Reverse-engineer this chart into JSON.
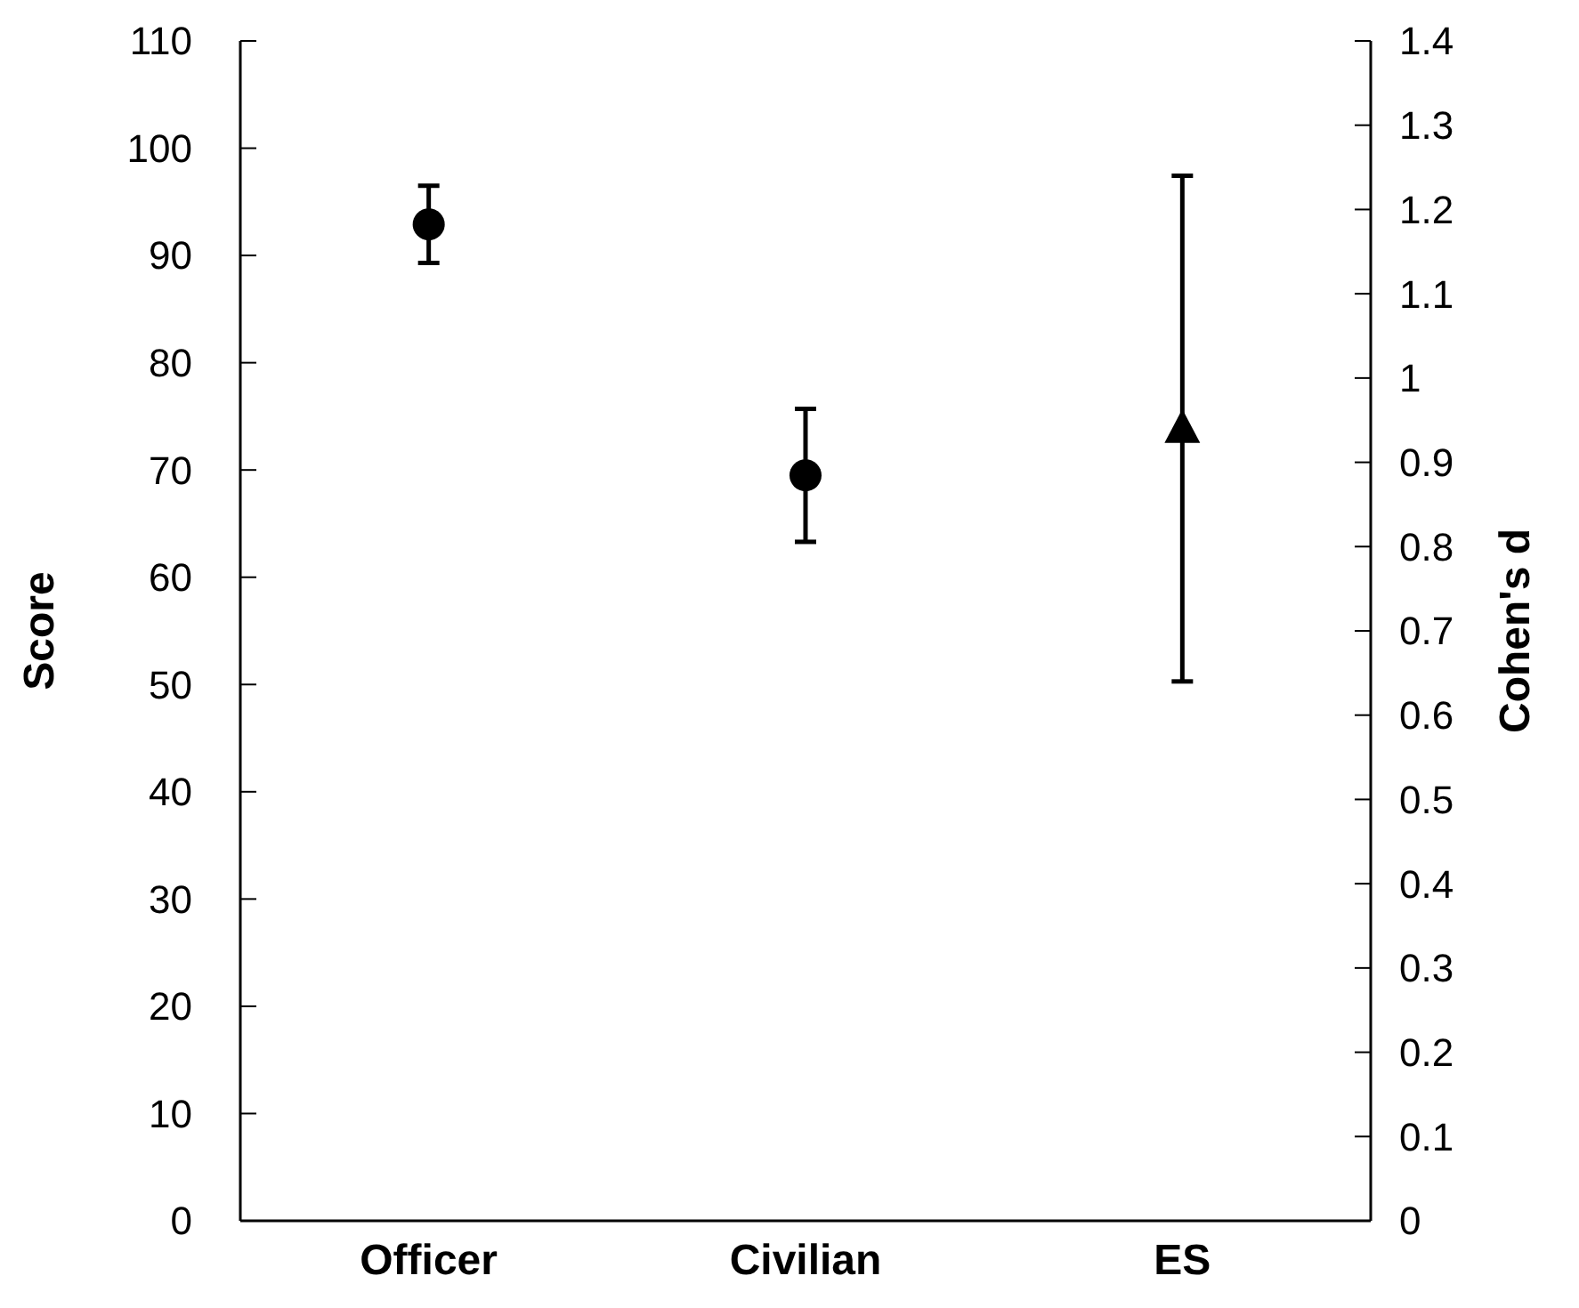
{
  "chart_data": {
    "type": "scatter",
    "ylabel": "Score",
    "y2label": "Cohen's d",
    "categories": [
      "Officer",
      "Civilian",
      "ES"
    ],
    "series": [
      {
        "color": "#000000",
        "values": [
          92.9,
          69.5,
          null
        ],
        "errors": [
          3.6,
          6.2,
          null
        ],
        "marker": "circle"
      },
      {
        "color": "#000000",
        "values": [
          null,
          null,
          0.94
        ],
        "errors": [
          null,
          null,
          0.3
        ],
        "axis": "y2",
        "marker": "triangle"
      }
    ],
    "ylim": [
      0,
      110
    ],
    "yticks": [
      0,
      10,
      20,
      30,
      40,
      50,
      60,
      70,
      80,
      90,
      100,
      110
    ],
    "y2lim": [
      0,
      1.4
    ],
    "y2ticks": [
      0,
      0.1,
      0.2,
      0.3,
      0.4,
      0.5,
      0.6,
      0.7,
      0.8,
      0.9,
      1,
      1.1,
      1.2,
      1.3,
      1.4
    ],
    "grid": false
  }
}
